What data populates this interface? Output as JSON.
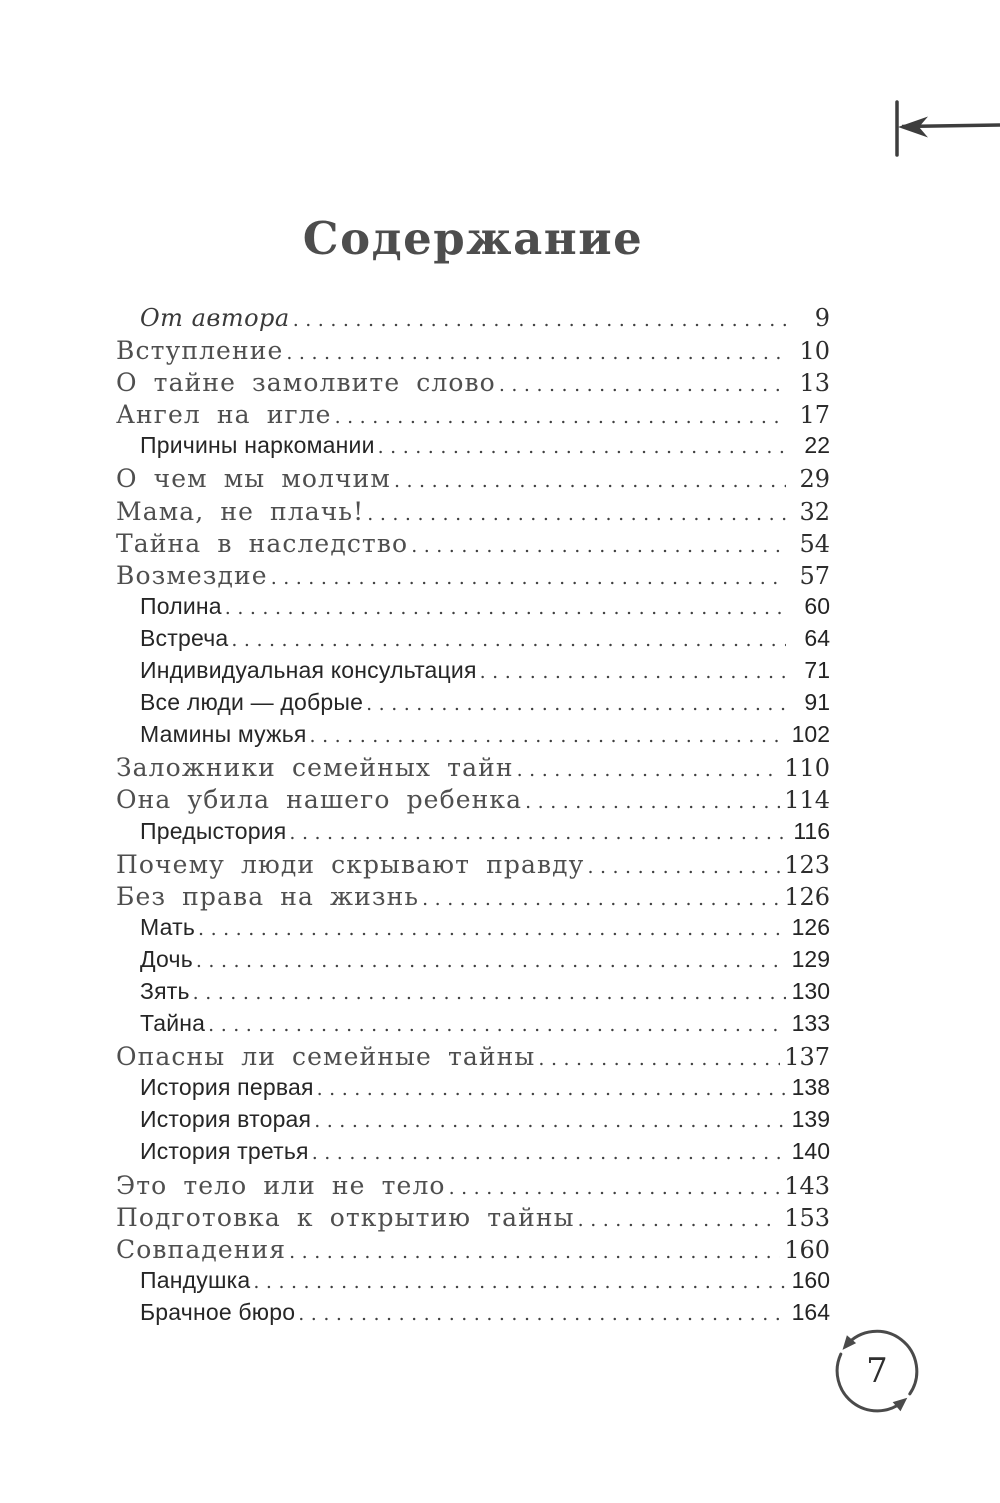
{
  "page": {
    "title": "Содержание",
    "page_number": "7"
  },
  "colors": {
    "ink_annotation": "#4a4a4a",
    "chapter_text": "#4f4f4f",
    "section_text": "#262626",
    "page_number_text": "#2e2e2e"
  },
  "toc": {
    "items": [
      {
        "label": "От автора",
        "page": "9",
        "level": "author"
      },
      {
        "label": "Вступление",
        "page": "10",
        "level": "chapter"
      },
      {
        "label": "О тайне замолвите слово",
        "page": "13",
        "level": "chapter"
      },
      {
        "label": "Ангел на игле",
        "page": "17",
        "level": "chapter"
      },
      {
        "label": "Причины наркомании",
        "page": "22",
        "level": "section"
      },
      {
        "label": "О чем мы молчим",
        "page": "29",
        "level": "chapter"
      },
      {
        "label": "Мама, не плачь!",
        "page": "32",
        "level": "chapter"
      },
      {
        "label": "Тайна в наследство",
        "page": "54",
        "level": "chapter"
      },
      {
        "label": "Возмездие",
        "page": "57",
        "level": "chapter"
      },
      {
        "label": "Полина",
        "page": "60",
        "level": "section"
      },
      {
        "label": "Встреча",
        "page": "64",
        "level": "section"
      },
      {
        "label": "Индивидуальная консультация",
        "page": "71",
        "level": "section"
      },
      {
        "label": "Все люди — добрые",
        "page": "91",
        "level": "section"
      },
      {
        "label": "Мамины мужья",
        "page": "102",
        "level": "section"
      },
      {
        "label": "Заложники семейных тайн",
        "page": "110",
        "level": "chapter"
      },
      {
        "label": "Она убила нашего ребенка",
        "page": "114",
        "level": "chapter"
      },
      {
        "label": "Предыстория",
        "page": "116",
        "level": "section"
      },
      {
        "label": "Почему люди скрывают правду",
        "page": "123",
        "level": "chapter"
      },
      {
        "label": "Без права на жизнь",
        "page": "126",
        "level": "chapter"
      },
      {
        "label": "Мать",
        "page": "126",
        "level": "section"
      },
      {
        "label": "Дочь",
        "page": "129",
        "level": "section"
      },
      {
        "label": "Зять",
        "page": "130",
        "level": "section"
      },
      {
        "label": "Тайна",
        "page": "133",
        "level": "section"
      },
      {
        "label": "Опасны ли семейные тайны",
        "page": "137",
        "level": "chapter"
      },
      {
        "label": "История первая",
        "page": "138",
        "level": "section"
      },
      {
        "label": "История вторая",
        "page": "139",
        "level": "section"
      },
      {
        "label": "История третья",
        "page": "140",
        "level": "section"
      },
      {
        "label": "Это тело или не тело",
        "page": "143",
        "level": "chapter"
      },
      {
        "label": "Подготовка к открытию тайны",
        "page": "153",
        "level": "chapter"
      },
      {
        "label": "Совпадения",
        "page": "160",
        "level": "chapter"
      },
      {
        "label": "Пандушка",
        "page": "160",
        "level": "section"
      },
      {
        "label": "Брачное бюро",
        "page": "164",
        "level": "section"
      }
    ]
  }
}
